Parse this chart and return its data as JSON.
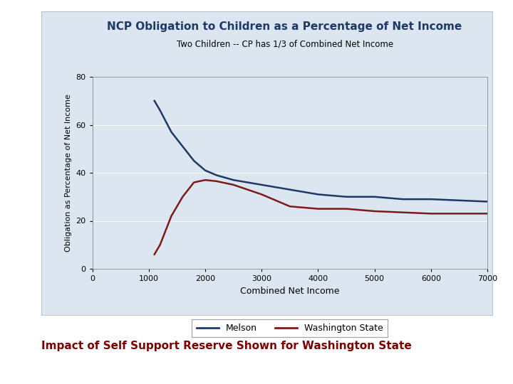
{
  "title": "NCP Obligation to Children as a Percentage of Net Income",
  "subtitle": "Two Children -- CP has 1/3 of Combined Net Income",
  "xlabel": "Combined Net Income",
  "ylabel": "Obligation as Percentage of Net Income",
  "xlim": [
    0,
    7000
  ],
  "ylim": [
    0,
    80
  ],
  "xticks": [
    0,
    1000,
    2000,
    3000,
    4000,
    5000,
    6000,
    7000
  ],
  "yticks": [
    0,
    20,
    40,
    60,
    80
  ],
  "melson_color": "#1f3864",
  "wa_color": "#7b1a1a",
  "chart_bg": "#dce6f0",
  "panel_bg": "#dce6f0",
  "outer_bg": "#ffffff",
  "caption": "Impact of Self Support Reserve Shown for Washington State",
  "caption_color": "#7b0000",
  "legend_labels": [
    "Melson",
    "Washington State"
  ],
  "melson_x": [
    1100,
    1200,
    1400,
    1600,
    1800,
    2000,
    2200,
    2500,
    3000,
    3500,
    4000,
    4500,
    5000,
    5500,
    6000,
    6500,
    7000
  ],
  "melson_y": [
    70,
    66,
    57,
    51,
    45,
    41,
    39,
    37,
    35,
    33,
    31,
    30,
    30,
    29,
    29,
    28.5,
    28
  ],
  "wa_x": [
    1100,
    1200,
    1400,
    1600,
    1800,
    2000,
    2200,
    2500,
    3000,
    3500,
    4000,
    4500,
    5000,
    5500,
    6000,
    6500,
    7000
  ],
  "wa_y": [
    6,
    10,
    22,
    30,
    36,
    37,
    36.5,
    35,
    31,
    26,
    25,
    25,
    24,
    23.5,
    23,
    23,
    23
  ]
}
